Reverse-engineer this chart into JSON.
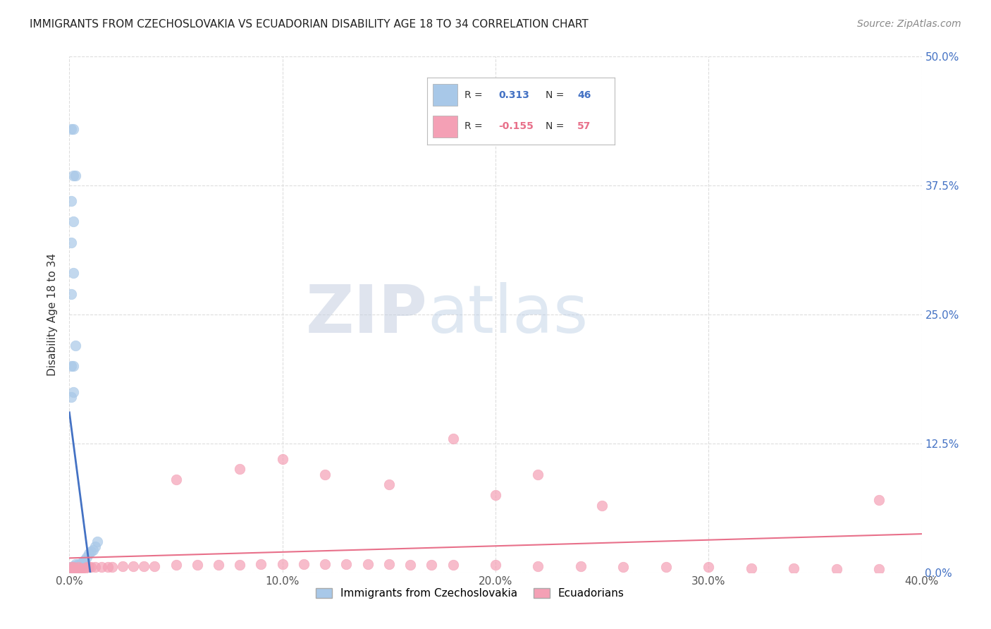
{
  "title": "IMMIGRANTS FROM CZECHOSLOVAKIA VS ECUADORIAN DISABILITY AGE 18 TO 34 CORRELATION CHART",
  "source": "Source: ZipAtlas.com",
  "ylabel": "Disability Age 18 to 34",
  "xlim": [
    0.0,
    0.4
  ],
  "ylim": [
    0.0,
    0.5
  ],
  "legend_label1": "Immigrants from Czechoslovakia",
  "legend_label2": "Ecuadorians",
  "R1": 0.313,
  "N1": 46,
  "R2": -0.155,
  "N2": 57,
  "color_blue": "#a8c8e8",
  "color_pink": "#f4a0b5",
  "color_blue_line": "#4472c4",
  "color_pink_line": "#e8708a",
  "color_blue_text": "#4472c4",
  "color_pink_text": "#e8708a",
  "blue_x": [
    0.001,
    0.001,
    0.001,
    0.001,
    0.001,
    0.002,
    0.002,
    0.002,
    0.002,
    0.002,
    0.002,
    0.002,
    0.003,
    0.003,
    0.003,
    0.003,
    0.003,
    0.004,
    0.004,
    0.004,
    0.005,
    0.005,
    0.006,
    0.006,
    0.007,
    0.007,
    0.008,
    0.009,
    0.01,
    0.011,
    0.012,
    0.013,
    0.001,
    0.002,
    0.003,
    0.001,
    0.002,
    0.001,
    0.002,
    0.001,
    0.002,
    0.003,
    0.001,
    0.002,
    0.001,
    0.002
  ],
  "blue_y": [
    0.003,
    0.003,
    0.003,
    0.004,
    0.005,
    0.003,
    0.003,
    0.004,
    0.004,
    0.005,
    0.005,
    0.006,
    0.003,
    0.004,
    0.005,
    0.006,
    0.008,
    0.005,
    0.006,
    0.008,
    0.006,
    0.008,
    0.008,
    0.01,
    0.01,
    0.012,
    0.015,
    0.018,
    0.02,
    0.022,
    0.025,
    0.03,
    0.17,
    0.2,
    0.22,
    0.27,
    0.29,
    0.32,
    0.34,
    0.36,
    0.385,
    0.385,
    0.43,
    0.43,
    0.2,
    0.175
  ],
  "pink_x": [
    0.001,
    0.001,
    0.002,
    0.002,
    0.003,
    0.003,
    0.004,
    0.004,
    0.005,
    0.005,
    0.006,
    0.007,
    0.008,
    0.009,
    0.01,
    0.012,
    0.015,
    0.018,
    0.02,
    0.025,
    0.03,
    0.035,
    0.04,
    0.05,
    0.06,
    0.07,
    0.08,
    0.09,
    0.1,
    0.11,
    0.12,
    0.13,
    0.14,
    0.15,
    0.16,
    0.17,
    0.18,
    0.2,
    0.22,
    0.24,
    0.26,
    0.28,
    0.3,
    0.32,
    0.34,
    0.36,
    0.38,
    0.38,
    0.05,
    0.08,
    0.1,
    0.12,
    0.15,
    0.18,
    0.2,
    0.22,
    0.25
  ],
  "pink_y": [
    0.003,
    0.005,
    0.003,
    0.005,
    0.003,
    0.004,
    0.003,
    0.005,
    0.003,
    0.004,
    0.004,
    0.004,
    0.005,
    0.005,
    0.005,
    0.005,
    0.005,
    0.005,
    0.005,
    0.006,
    0.006,
    0.006,
    0.006,
    0.007,
    0.007,
    0.007,
    0.007,
    0.008,
    0.008,
    0.008,
    0.008,
    0.008,
    0.008,
    0.008,
    0.007,
    0.007,
    0.007,
    0.007,
    0.006,
    0.006,
    0.005,
    0.005,
    0.005,
    0.004,
    0.004,
    0.003,
    0.003,
    0.07,
    0.09,
    0.1,
    0.11,
    0.095,
    0.085,
    0.13,
    0.075,
    0.095,
    0.065
  ],
  "watermark_zip": "ZIP",
  "watermark_atlas": "atlas",
  "background_color": "#ffffff",
  "grid_color": "#dddddd"
}
